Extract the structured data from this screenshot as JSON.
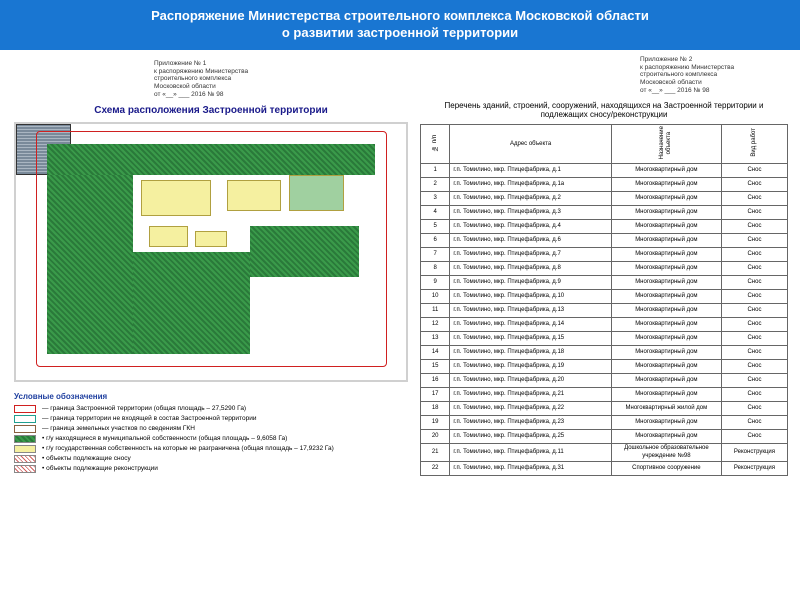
{
  "header": {
    "line1": "Распоряжение Министерства строительного комплекса Московской области",
    "line2": "о развитии застроенной территории"
  },
  "colors": {
    "header_bg": "#1976d2",
    "header_text": "#ffffff",
    "red": "#d02020",
    "green": "#2a7a3a",
    "yellow": "#f5f0a0"
  },
  "annex1": {
    "l1": "Приложение № 1",
    "l2": "к распоряжению Министерства",
    "l3": "строительного комплекса",
    "l4": "Московской области",
    "l5": "от «__» ___ 2016 № 98"
  },
  "annex2": {
    "l1": "Приложение № 2",
    "l2": "к распоряжению Министерства",
    "l3": "строительного комплекса",
    "l4": "Московской области",
    "l5": "от «__» ___ 2016 № 98"
  },
  "scheme_title": "Схема расположения Застроенной территории",
  "legend": {
    "title": "Условные обозначения",
    "rows": [
      "— граница Застроенной территории (общая площадь – 27,5290 Га)",
      "— граница территории не входящей в состав Застроенной территории",
      "— граница земельных участков по сведениям ГКН",
      "• г/у находящиеся в муниципальной собственности (общая площадь – 9,6058 Га)",
      "• г/у государственная собственность на которые не разграничена (общая площадь – 17,9232 Га)",
      "• объекты подлежащие сносу",
      "• объекты подлежащие реконструкции"
    ]
  },
  "list_title": "Перечень зданий, строений, сооружений, находящихся на Застроенной территории и подлежащих сносу/реконструкции",
  "table": {
    "headers": {
      "num": "№ п/п",
      "addr": "Адрес объекта",
      "purpose": "Назначение объекта",
      "work": "Вид работ"
    },
    "rows": [
      {
        "n": "1",
        "addr": "г.п. Томилино, мкр. Птицефабрика, д.1",
        "p": "Многоквартирный дом",
        "w": "Снос"
      },
      {
        "n": "2",
        "addr": "г.п. Томилино, мкр. Птицефабрика, д.1а",
        "p": "Многоквартирный дом",
        "w": "Снос"
      },
      {
        "n": "3",
        "addr": "г.п. Томилино, мкр. Птицефабрика, д.2",
        "p": "Многоквартирный дом",
        "w": "Снос"
      },
      {
        "n": "4",
        "addr": "г.п. Томилино, мкр. Птицефабрика, д.3",
        "p": "Многоквартирный дом",
        "w": "Снос"
      },
      {
        "n": "5",
        "addr": "г.п. Томилино, мкр. Птицефабрика, д.4",
        "p": "Многоквартирный дом",
        "w": "Снос"
      },
      {
        "n": "6",
        "addr": "г.п. Томилино, мкр. Птицефабрика, д.6",
        "p": "Многоквартирный дом",
        "w": "Снос"
      },
      {
        "n": "7",
        "addr": "г.п. Томилино, мкр. Птицефабрика, д.7",
        "p": "Многоквартирный дом",
        "w": "Снос"
      },
      {
        "n": "8",
        "addr": "г.п. Томилино, мкр. Птицефабрика, д.8",
        "p": "Многоквартирный дом",
        "w": "Снос"
      },
      {
        "n": "9",
        "addr": "г.п. Томилино, мкр. Птицефабрика, д.9",
        "p": "Многоквартирный дом",
        "w": "Снос"
      },
      {
        "n": "10",
        "addr": "г.п. Томилино, мкр. Птицефабрика, д.10",
        "p": "Многоквартирный дом",
        "w": "Снос"
      },
      {
        "n": "11",
        "addr": "г.п. Томилино, мкр. Птицефабрика, д.13",
        "p": "Многоквартирный дом",
        "w": "Снос"
      },
      {
        "n": "12",
        "addr": "г.п. Томилино, мкр. Птицефабрика, д.14",
        "p": "Многоквартирный дом",
        "w": "Снос"
      },
      {
        "n": "13",
        "addr": "г.п. Томилино, мкр. Птицефабрика, д.15",
        "p": "Многоквартирный дом",
        "w": "Снос"
      },
      {
        "n": "14",
        "addr": "г.п. Томилино, мкр. Птицефабрика, д.18",
        "p": "Многоквартирный дом",
        "w": "Снос"
      },
      {
        "n": "15",
        "addr": "г.п. Томилино, мкр. Птицефабрика, д.19",
        "p": "Многоквартирный дом",
        "w": "Снос"
      },
      {
        "n": "16",
        "addr": "г.п. Томилино, мкр. Птицефабрика, д.20",
        "p": "Многоквартирный дом",
        "w": "Снос"
      },
      {
        "n": "17",
        "addr": "г.п. Томилино, мкр. Птицефабрика, д.21",
        "p": "Многоквартирный дом",
        "w": "Снос"
      },
      {
        "n": "18",
        "addr": "г.п. Томилино, мкр. Птицефабрика, д.22",
        "p": "Многоквартирный жилой дом",
        "w": "Снос"
      },
      {
        "n": "19",
        "addr": "г.п. Томилино, мкр. Птицефабрика, д.23",
        "p": "Многоквартирный дом",
        "w": "Снос"
      },
      {
        "n": "20",
        "addr": "г.п. Томилино, мкр. Птицефабрика, д.25",
        "p": "Многоквартирный дом",
        "w": "Снос"
      },
      {
        "n": "21",
        "addr": "г.п. Томилино, мкр. Птицефабрика, д.11",
        "p": "Дошкольное образовательное учреждение №98",
        "w": "Реконструкция"
      },
      {
        "n": "22",
        "addr": "г.п. Томилино, мкр. Птицефабрика, д.31",
        "p": "Спортивное сооружение",
        "w": "Реконструкция"
      }
    ]
  }
}
